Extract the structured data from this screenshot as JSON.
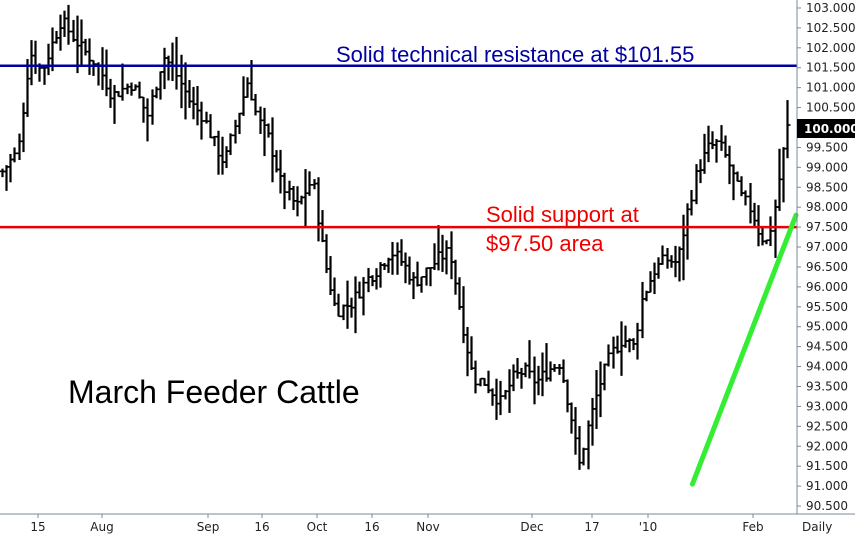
{
  "chart_data": {
    "type": "ohlc",
    "title": "March Feeder Cattle",
    "frequency_label": "Daily",
    "y_ticks": [
      "90.500",
      "91.000",
      "91.500",
      "92.000",
      "92.500",
      "93.000",
      "93.500",
      "94.000",
      "94.500",
      "95.000",
      "95.500",
      "96.000",
      "96.500",
      "97.000",
      "97.500",
      "98.000",
      "98.500",
      "99.000",
      "99.500",
      "100.000",
      "100.500",
      "101.000",
      "101.500",
      "102.000",
      "102.500",
      "103.000"
    ],
    "ylim": [
      90.3,
      103.2
    ],
    "x_ticks": [
      "15",
      "Aug",
      "Sep",
      "16",
      "Oct",
      "16",
      "Nov",
      "Dec",
      "17",
      "'10",
      "Feb"
    ],
    "last_price": {
      "label": "100.000",
      "value": 100.0
    },
    "resistance": {
      "value": 101.55,
      "label": "Solid technical resistance at $101.55",
      "color": "#0000a0"
    },
    "support": {
      "value": 97.5,
      "label_line1": "Solid support at",
      "label_line2": "$97.50 area",
      "color": "#ee0000"
    },
    "trendline": {
      "start": {
        "bar": 0.905,
        "value": 91.05
      },
      "end": {
        "bar": 1.0,
        "value": 97.8
      },
      "color": "#33ee33"
    },
    "colors": {
      "bars": "#000000",
      "axis": "#7a8aa0",
      "last_price_bg": "#000000"
    },
    "price_path": [
      [
        0.0,
        98.9
      ],
      [
        0.02,
        99.4
      ],
      [
        0.035,
        101.9
      ],
      [
        0.05,
        101.4
      ],
      [
        0.075,
        102.7
      ],
      [
        0.1,
        102.0
      ],
      [
        0.12,
        101.6
      ],
      [
        0.14,
        100.8
      ],
      [
        0.165,
        101.1
      ],
      [
        0.185,
        100.3
      ],
      [
        0.205,
        101.8
      ],
      [
        0.22,
        101.4
      ],
      [
        0.24,
        100.6
      ],
      [
        0.255,
        100.3
      ],
      [
        0.27,
        99.6
      ],
      [
        0.283,
        99.1
      ],
      [
        0.3,
        100.3
      ],
      [
        0.313,
        101.2
      ],
      [
        0.325,
        100.2
      ],
      [
        0.34,
        99.7
      ],
      [
        0.355,
        98.6
      ],
      [
        0.375,
        98.0
      ],
      [
        0.395,
        98.7
      ],
      [
        0.41,
        96.7
      ],
      [
        0.425,
        95.4
      ],
      [
        0.445,
        95.6
      ],
      [
        0.465,
        96.2
      ],
      [
        0.48,
        96.5
      ],
      [
        0.495,
        96.9
      ],
      [
        0.51,
        96.6
      ],
      [
        0.525,
        96.1
      ],
      [
        0.54,
        96.4
      ],
      [
        0.555,
        96.7
      ],
      [
        0.57,
        96.9
      ],
      [
        0.585,
        95.2
      ],
      [
        0.6,
        93.7
      ],
      [
        0.615,
        93.6
      ],
      [
        0.635,
        93.1
      ],
      [
        0.65,
        93.7
      ],
      [
        0.665,
        93.9
      ],
      [
        0.68,
        93.6
      ],
      [
        0.695,
        93.9
      ],
      [
        0.71,
        94.1
      ],
      [
        0.725,
        92.7
      ],
      [
        0.735,
        91.5
      ],
      [
        0.745,
        92.4
      ],
      [
        0.76,
        93.5
      ],
      [
        0.775,
        94.3
      ],
      [
        0.79,
        94.7
      ],
      [
        0.805,
        94.5
      ],
      [
        0.815,
        95.7
      ],
      [
        0.83,
        96.4
      ],
      [
        0.845,
        96.7
      ],
      [
        0.86,
        96.6
      ],
      [
        0.872,
        97.8
      ],
      [
        0.885,
        98.9
      ],
      [
        0.9,
        99.5
      ],
      [
        0.912,
        99.6
      ],
      [
        0.925,
        99.1
      ],
      [
        0.94,
        98.3
      ],
      [
        0.955,
        97.9
      ],
      [
        0.965,
        97.3
      ],
      [
        0.975,
        97.1
      ],
      [
        0.985,
        98.1
      ],
      [
        0.993,
        99.2
      ],
      [
        1.0,
        100.0
      ]
    ]
  }
}
